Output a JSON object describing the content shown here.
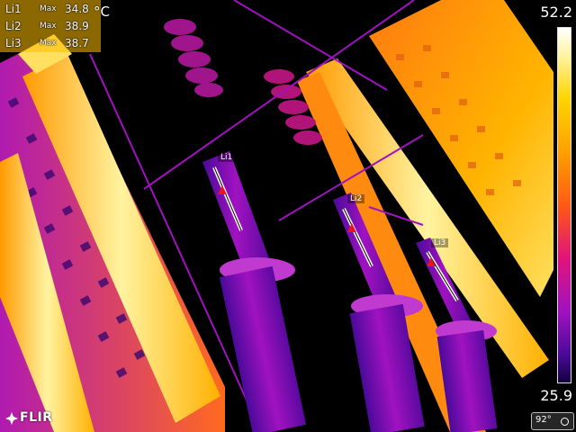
{
  "measurements": [
    {
      "name": "Li1",
      "type": "Max",
      "value": "34.8"
    },
    {
      "name": "Li2",
      "type": "Max",
      "value": "38.9"
    },
    {
      "name": "Li3",
      "type": "Max",
      "value": "38.7"
    }
  ],
  "unit": "°C",
  "scale": {
    "max": "52.2",
    "min": "25.9"
  },
  "spot_labels": {
    "li1": "Li1",
    "li2": "Li2",
    "li3": "Li3"
  },
  "brand": "FLIR",
  "status_text": "92°",
  "icons": {
    "logo": "flir-logo-icon",
    "marker": "triangle-max-marker-icon",
    "status": "battery-status-icon"
  },
  "colors": {
    "readout_bg": "#ffbe00",
    "hot": "#ffd400",
    "mid": "#ff5a14",
    "cool": "#a012c0",
    "cold": "#140040"
  }
}
